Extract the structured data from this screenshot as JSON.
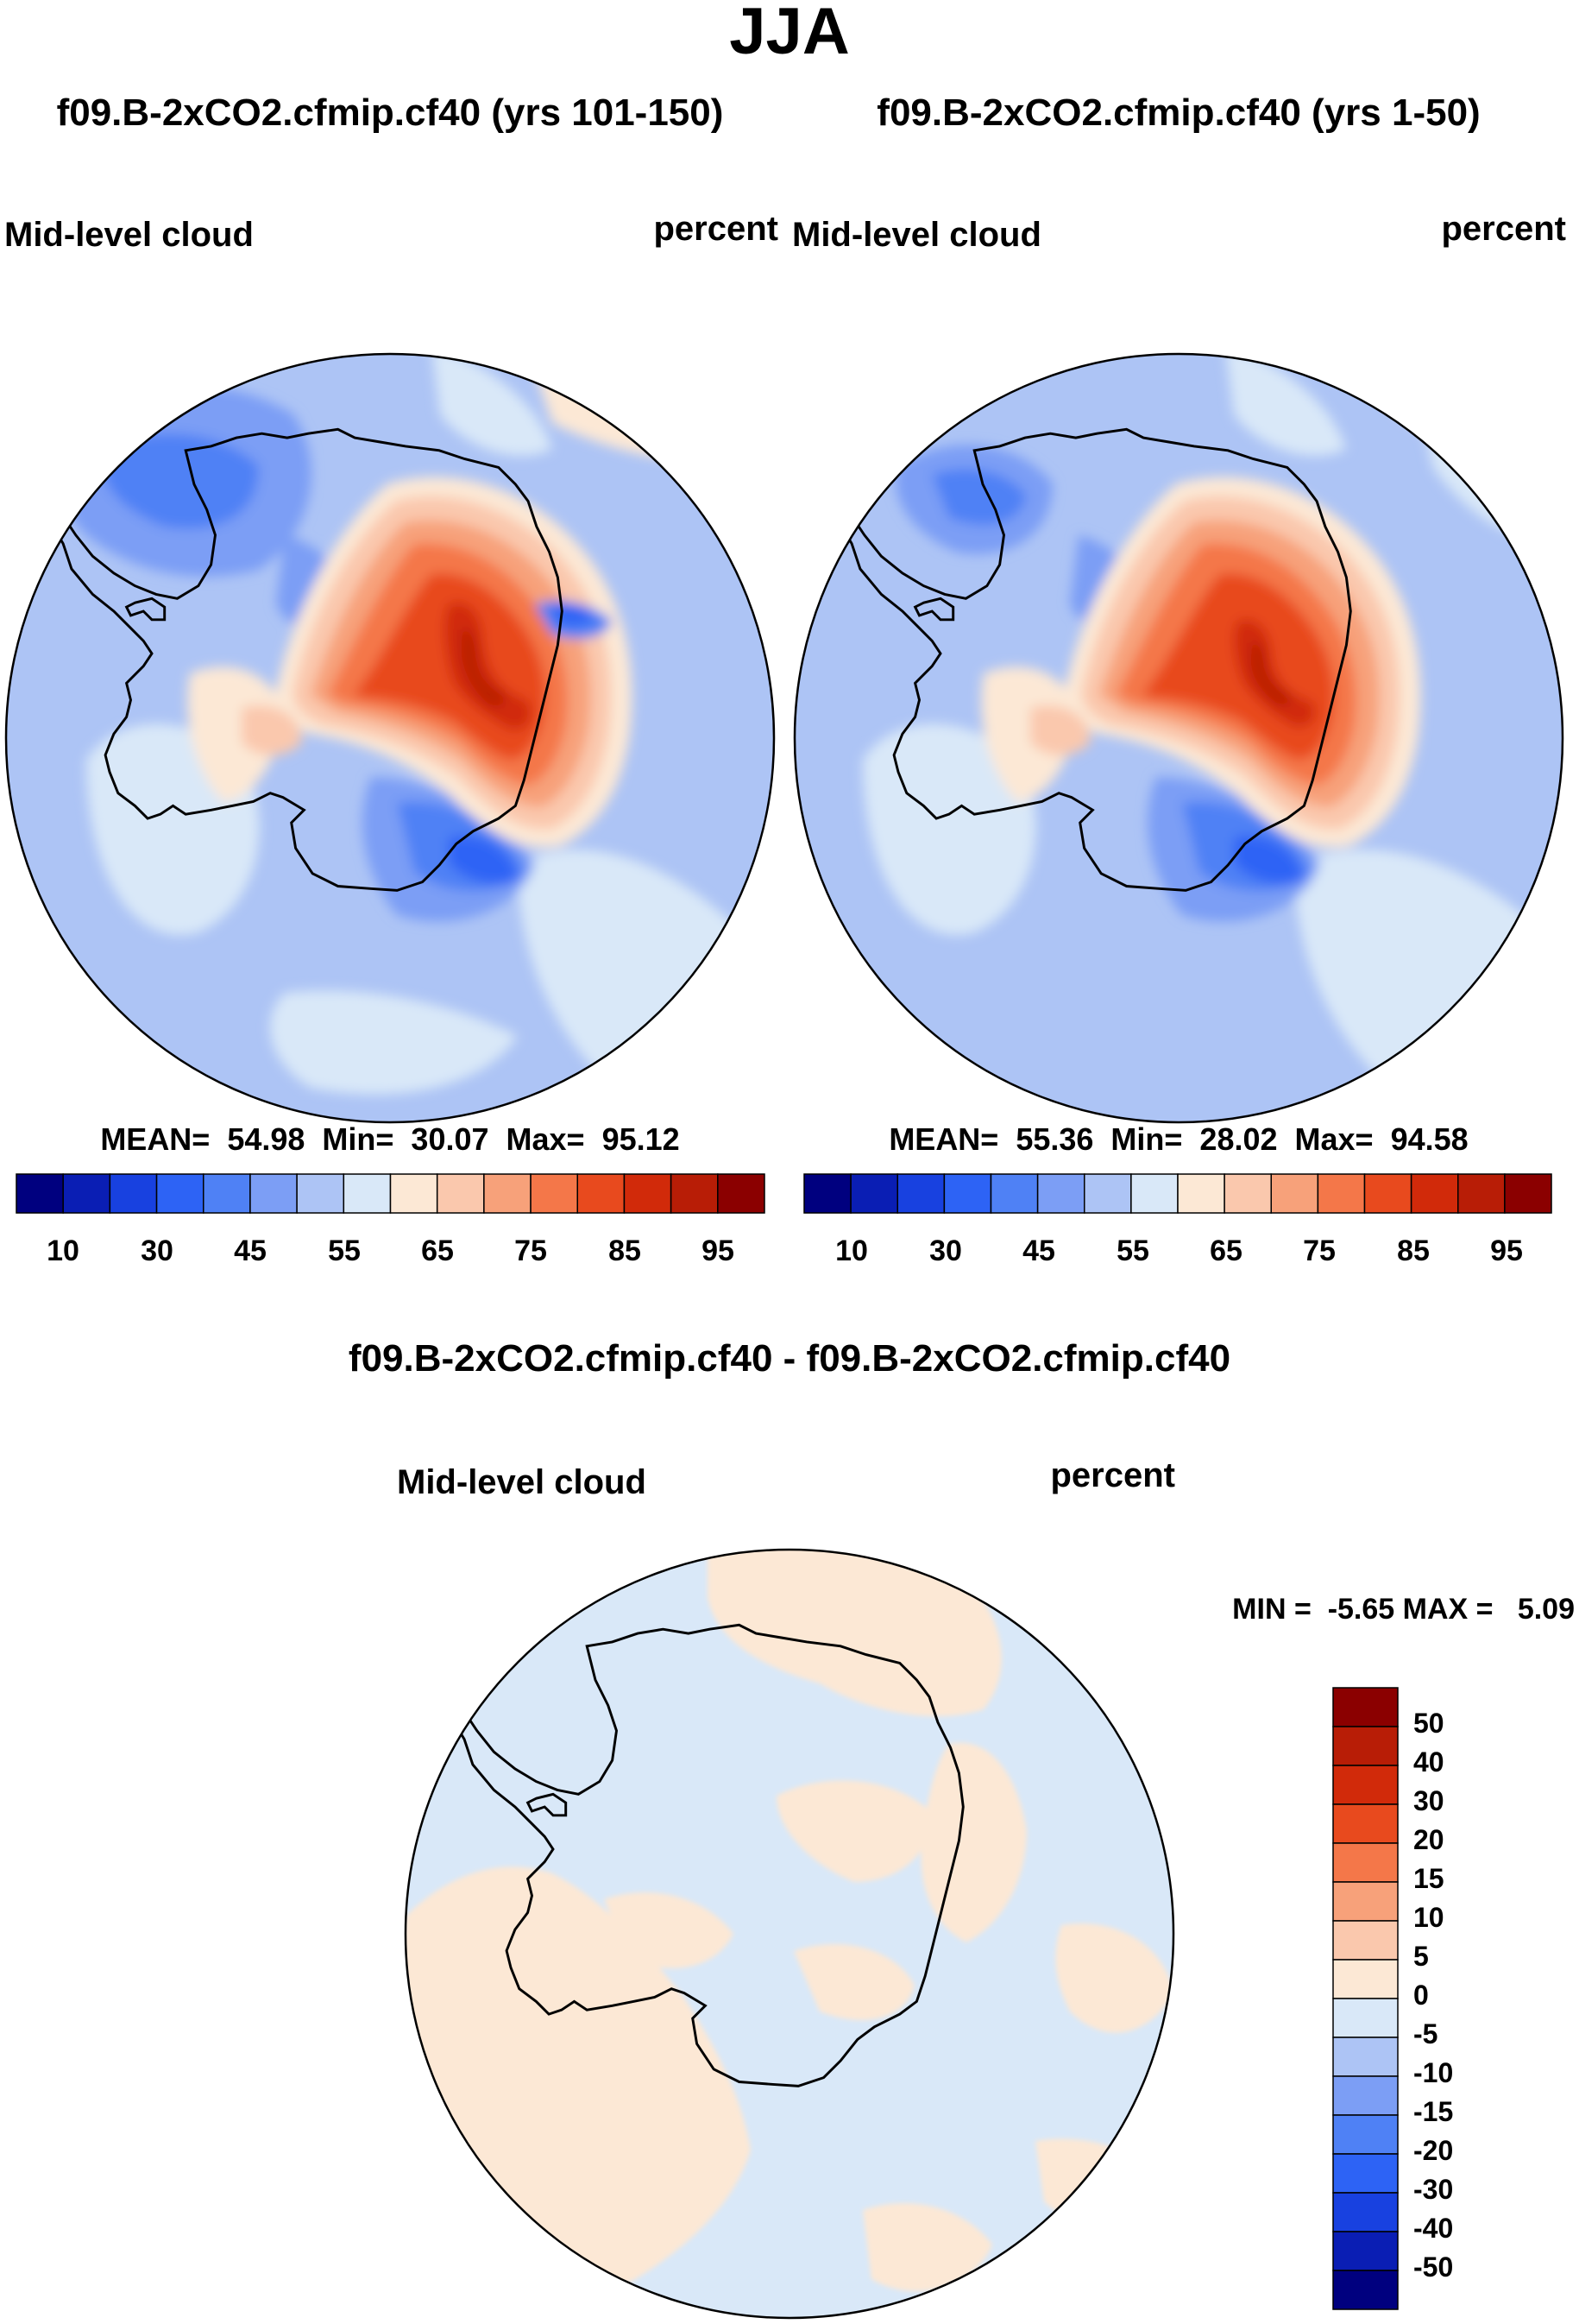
{
  "page_title": "JJA",
  "colors": {
    "abs_scale": [
      "#00007f",
      "#0a1eb4",
      "#1841e0",
      "#2d63f5",
      "#4f81f5",
      "#7c9ef5",
      "#adc4f5",
      "#d9e8f8",
      "#fce8d5",
      "#fac8ad",
      "#f7a17a",
      "#f47749",
      "#e84a1e",
      "#d12a0a",
      "#b81d06",
      "#8b0000"
    ],
    "diff_scale": [
      "#00007f",
      "#0a1eb4",
      "#1841e0",
      "#2d63f5",
      "#4f81f5",
      "#7c9ef5",
      "#adc4f5",
      "#d9e8f8",
      "#fce8d5",
      "#fac8ad",
      "#f7a17a",
      "#f47749",
      "#e84a1e",
      "#d12a0a",
      "#b81d06",
      "#8b0000"
    ]
  },
  "chart_data": [
    {
      "type": "heatmap",
      "projection": "south-polar-stereographic",
      "title": "f09.B-2xCO2.cfmip.cf40 (yrs 101-150)",
      "left_label": "Mid-level cloud",
      "right_label": "percent",
      "stats_text": "MEAN=  54.98  Min=  30.07  Max=  95.12",
      "stats": {
        "mean": 54.98,
        "min": 30.07,
        "max": 95.12
      },
      "colorbar_ticks": [
        "10",
        "30",
        "45",
        "55",
        "65",
        "75",
        "85",
        "95"
      ],
      "contour_levels": [
        5,
        10,
        20,
        30,
        40,
        45,
        50,
        55,
        60,
        65,
        70,
        75,
        80,
        85,
        90,
        95
      ]
    },
    {
      "type": "heatmap",
      "projection": "south-polar-stereographic",
      "title": "f09.B-2xCO2.cfmip.cf40 (yrs 1-50)",
      "left_label": "Mid-level cloud",
      "right_label": "percent",
      "stats_text": "MEAN=  55.36  Min=  28.02  Max=  94.58",
      "stats": {
        "mean": 55.36,
        "min": 28.02,
        "max": 94.58
      },
      "colorbar_ticks": [
        "10",
        "30",
        "45",
        "55",
        "65",
        "75",
        "85",
        "95"
      ],
      "contour_levels": [
        5,
        10,
        20,
        30,
        40,
        45,
        50,
        55,
        60,
        65,
        70,
        75,
        80,
        85,
        90,
        95
      ]
    },
    {
      "type": "heatmap",
      "projection": "south-polar-stereographic",
      "title": "f09.B-2xCO2.cfmip.cf40 - f09.B-2xCO2.cfmip.cf40",
      "left_label": "Mid-level cloud",
      "right_label": "percent",
      "stats_text": "MIN =  -5.65 MAX =   5.09",
      "stats": {
        "min": -5.65,
        "max": 5.09
      },
      "colorbar_ticks": [
        "50",
        "40",
        "30",
        "20",
        "15",
        "10",
        "5",
        "0",
        "-5",
        "-10",
        "-15",
        "-20",
        "-30",
        "-40",
        "-50"
      ]
    }
  ]
}
